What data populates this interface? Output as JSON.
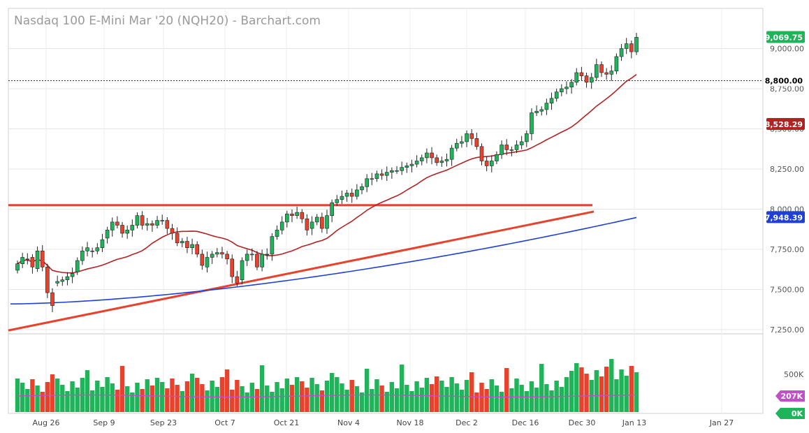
{
  "chart_data": {
    "type": "candlestick",
    "title": "Nasdaq 100 E-Mini Mar '20 (NQH20) - Barchart.com",
    "price_ticks": [
      "9,000.00",
      "8,750.00",
      "8,500.00",
      "8,250.00",
      "8,000.00",
      "7,750.00",
      "7,500.00",
      "7,250.00"
    ],
    "price_tick_values": [
      9000,
      8750,
      8500,
      8250,
      8000,
      7750,
      7500,
      7250
    ],
    "ylim": [
      7200,
      9170
    ],
    "volume_ticks": [
      "500K"
    ],
    "x_ticks": [
      "Aug 26",
      "Sep 9",
      "Sep 23",
      "Oct 7",
      "Oct 21",
      "Nov 4",
      "Nov 18",
      "Dec 2",
      "Dec 16",
      "Dec 30",
      "Jan 13",
      "Jan 27"
    ],
    "badges": {
      "last": "9,069.75",
      "level": "8,800.00",
      "ma_short": "8,528.29",
      "ma_long": "7,948.39",
      "vol_avg": "207K",
      "vol_zero": "0K"
    },
    "colors": {
      "up": "#1fb45a",
      "down": "#e8412c",
      "ma_short": "#b22222",
      "ma_long": "#1f3fd9",
      "trendline": "#e8412c",
      "vol_avg": "#c04fc8"
    },
    "closes": [
      7660,
      7700,
      7690,
      7640,
      7740,
      7640,
      7480,
      7400,
      7550,
      7560,
      7580,
      7600,
      7680,
      7740,
      7760,
      7740,
      7760,
      7810,
      7870,
      7920,
      7900,
      7850,
      7870,
      7900,
      7960,
      7900,
      7910,
      7900,
      7930,
      7930,
      7880,
      7850,
      7790,
      7800,
      7760,
      7780,
      7720,
      7650,
      7700,
      7720,
      7730,
      7720,
      7690,
      7580,
      7540,
      7680,
      7720,
      7720,
      7640,
      7720,
      7720,
      7830,
      7870,
      7920,
      7970,
      7960,
      7980,
      7940,
      7870,
      7920,
      7950,
      7880,
      7960,
      8040,
      8060,
      8080,
      8100,
      8080,
      8120,
      8140,
      8190,
      8190,
      8220,
      8210,
      8230,
      8240,
      8240,
      8260,
      8270,
      8280,
      8300,
      8320,
      8350,
      8320,
      8290,
      8300,
      8310,
      8380,
      8410,
      8420,
      8470,
      8440,
      8390,
      8300,
      8270,
      8300,
      8340,
      8400,
      8370,
      8370,
      8400,
      8420,
      8470,
      8600,
      8610,
      8620,
      8660,
      8690,
      8730,
      8750,
      8760,
      8790,
      8850,
      8830,
      8790,
      8820,
      8900,
      8850,
      8840,
      8860,
      8950,
      9000,
      9030,
      8980,
      9070
    ],
    "opens": [
      7620,
      7660,
      7690,
      7700,
      7630,
      7740,
      7640,
      7480,
      7540,
      7550,
      7560,
      7580,
      7610,
      7680,
      7740,
      7740,
      7740,
      7760,
      7820,
      7870,
      7920,
      7900,
      7850,
      7870,
      7900,
      7960,
      7900,
      7910,
      7900,
      7930,
      7930,
      7880,
      7850,
      7790,
      7800,
      7760,
      7780,
      7720,
      7640,
      7700,
      7720,
      7730,
      7720,
      7690,
      7580,
      7560,
      7680,
      7720,
      7720,
      7640,
      7720,
      7720,
      7830,
      7870,
      7920,
      7970,
      7960,
      7980,
      7940,
      7880,
      7920,
      7950,
      7880,
      7960,
      8040,
      8060,
      8080,
      8100,
      8080,
      8120,
      8140,
      8190,
      8190,
      8220,
      8210,
      8230,
      8240,
      8240,
      8260,
      8270,
      8280,
      8300,
      8320,
      8350,
      8320,
      8290,
      8300,
      8310,
      8380,
      8410,
      8420,
      8470,
      8440,
      8390,
      8300,
      8270,
      8300,
      8340,
      8400,
      8370,
      8370,
      8400,
      8420,
      8470,
      8600,
      8610,
      8620,
      8660,
      8690,
      8730,
      8750,
      8760,
      8790,
      8850,
      8830,
      8790,
      8820,
      8900,
      8850,
      8840,
      8860,
      8950,
      9000,
      9030,
      8980
    ]
  }
}
